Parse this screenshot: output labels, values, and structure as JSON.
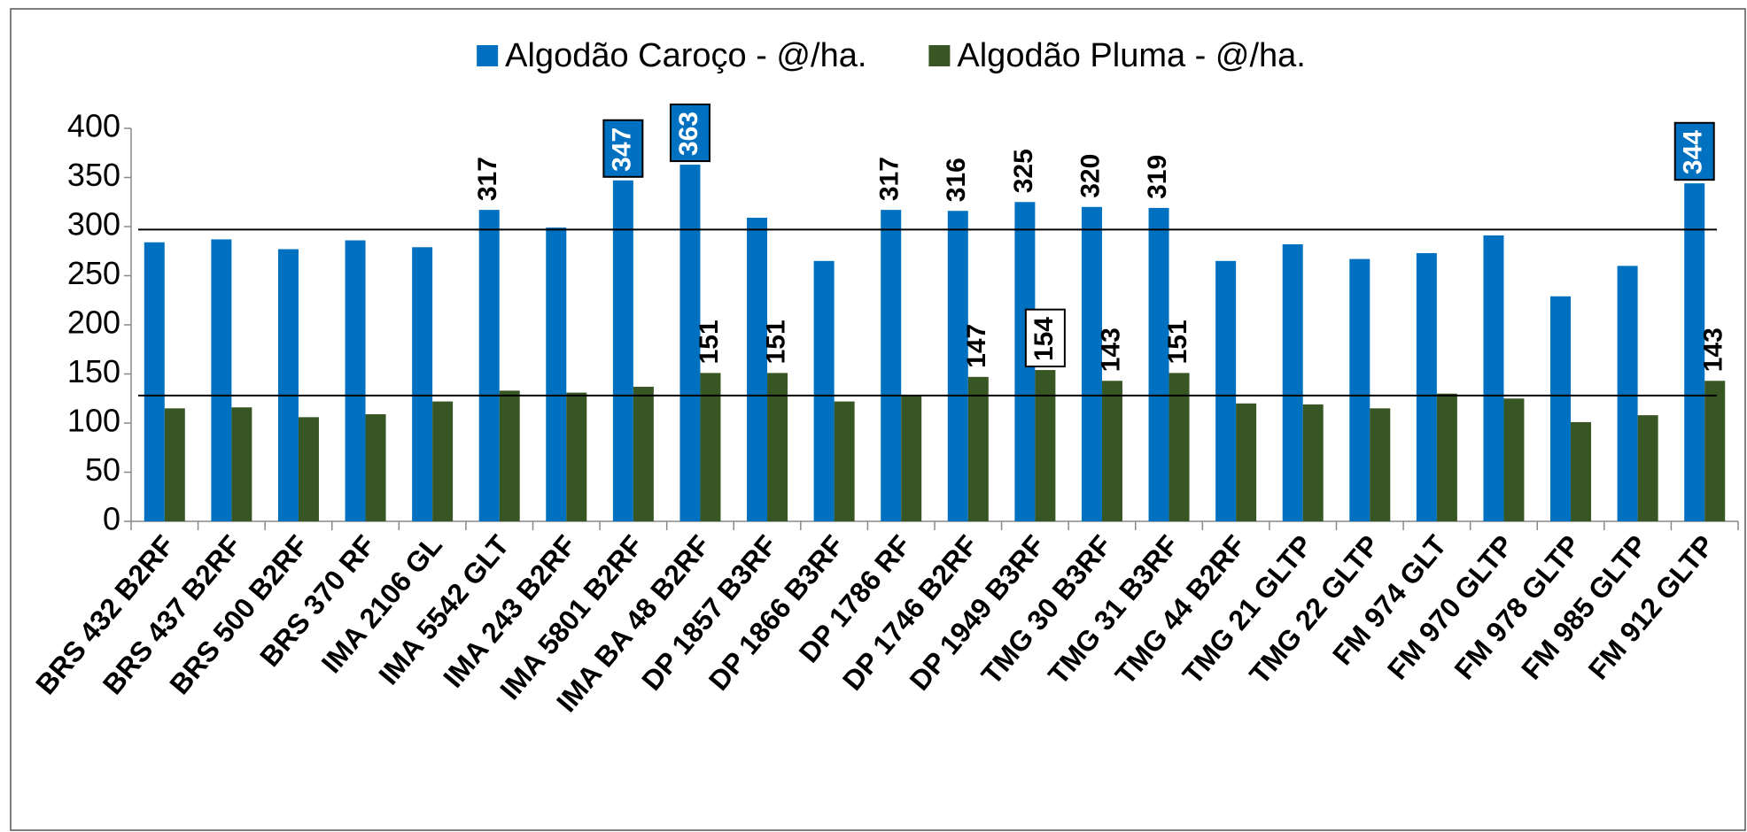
{
  "chart_data": {
    "type": "bar",
    "categories": [
      "BRS 432 B2RF",
      "BRS 437 B2RF",
      "BRS 500 B2RF",
      "BRS 370 RF",
      "IMA 2106 GL",
      "IMA 5542 GLT",
      "IMA 243 B2RF",
      "IMA 5801 B2RF",
      "IMA BA 48 B2RF",
      "DP 1857 B3RF",
      "DP 1866 B3RF",
      "DP 1786 RF",
      "DP 1746 B2RF",
      "DP 1949 B3RF",
      "TMG 30 B3RF",
      "TMG 31 B3RF",
      "TMG 44 B2RF",
      "TMG 21 GLTP",
      "TMG 22 GLTP",
      "FM 974 GLT",
      "FM 970 GLTP",
      "FM 978 GLTP",
      "FM 985 GLTP",
      "FM 912 GLTP"
    ],
    "series": [
      {
        "name": "Algodão Caroço - @/ha.",
        "color": "#0070c0",
        "values": [
          284,
          287,
          277,
          286,
          279,
          317,
          299,
          347,
          363,
          309,
          265,
          317,
          316,
          325,
          320,
          319,
          265,
          282,
          267,
          273,
          291,
          229,
          260,
          344
        ],
        "value_labels": [
          null,
          null,
          null,
          null,
          null,
          "317",
          null,
          "347",
          "363",
          null,
          null,
          "317",
          "316",
          "325",
          "320",
          "319",
          null,
          null,
          null,
          null,
          null,
          null,
          null,
          "344"
        ],
        "highlight": [
          7,
          8,
          23
        ],
        "highlight_style": "filled"
      },
      {
        "name": "Algodão Pluma - @/ha.",
        "color": "#375623",
        "values": [
          115,
          116,
          106,
          109,
          122,
          133,
          131,
          137,
          151,
          151,
          122,
          128,
          147,
          154,
          143,
          151,
          120,
          119,
          115,
          130,
          125,
          101,
          108,
          143
        ],
        "value_labels": [
          null,
          null,
          null,
          null,
          null,
          null,
          null,
          null,
          "151",
          "151",
          null,
          null,
          "147",
          "154",
          "143",
          "151",
          null,
          null,
          null,
          null,
          null,
          null,
          null,
          "143"
        ],
        "highlight": [
          13
        ],
        "highlight_style": "outline"
      }
    ],
    "reference_lines": [
      297,
      128
    ],
    "ylim": [
      0,
      400
    ],
    "yticks": [
      0,
      50,
      100,
      150,
      200,
      250,
      300,
      350,
      400
    ],
    "grid": false,
    "legend": "top"
  }
}
